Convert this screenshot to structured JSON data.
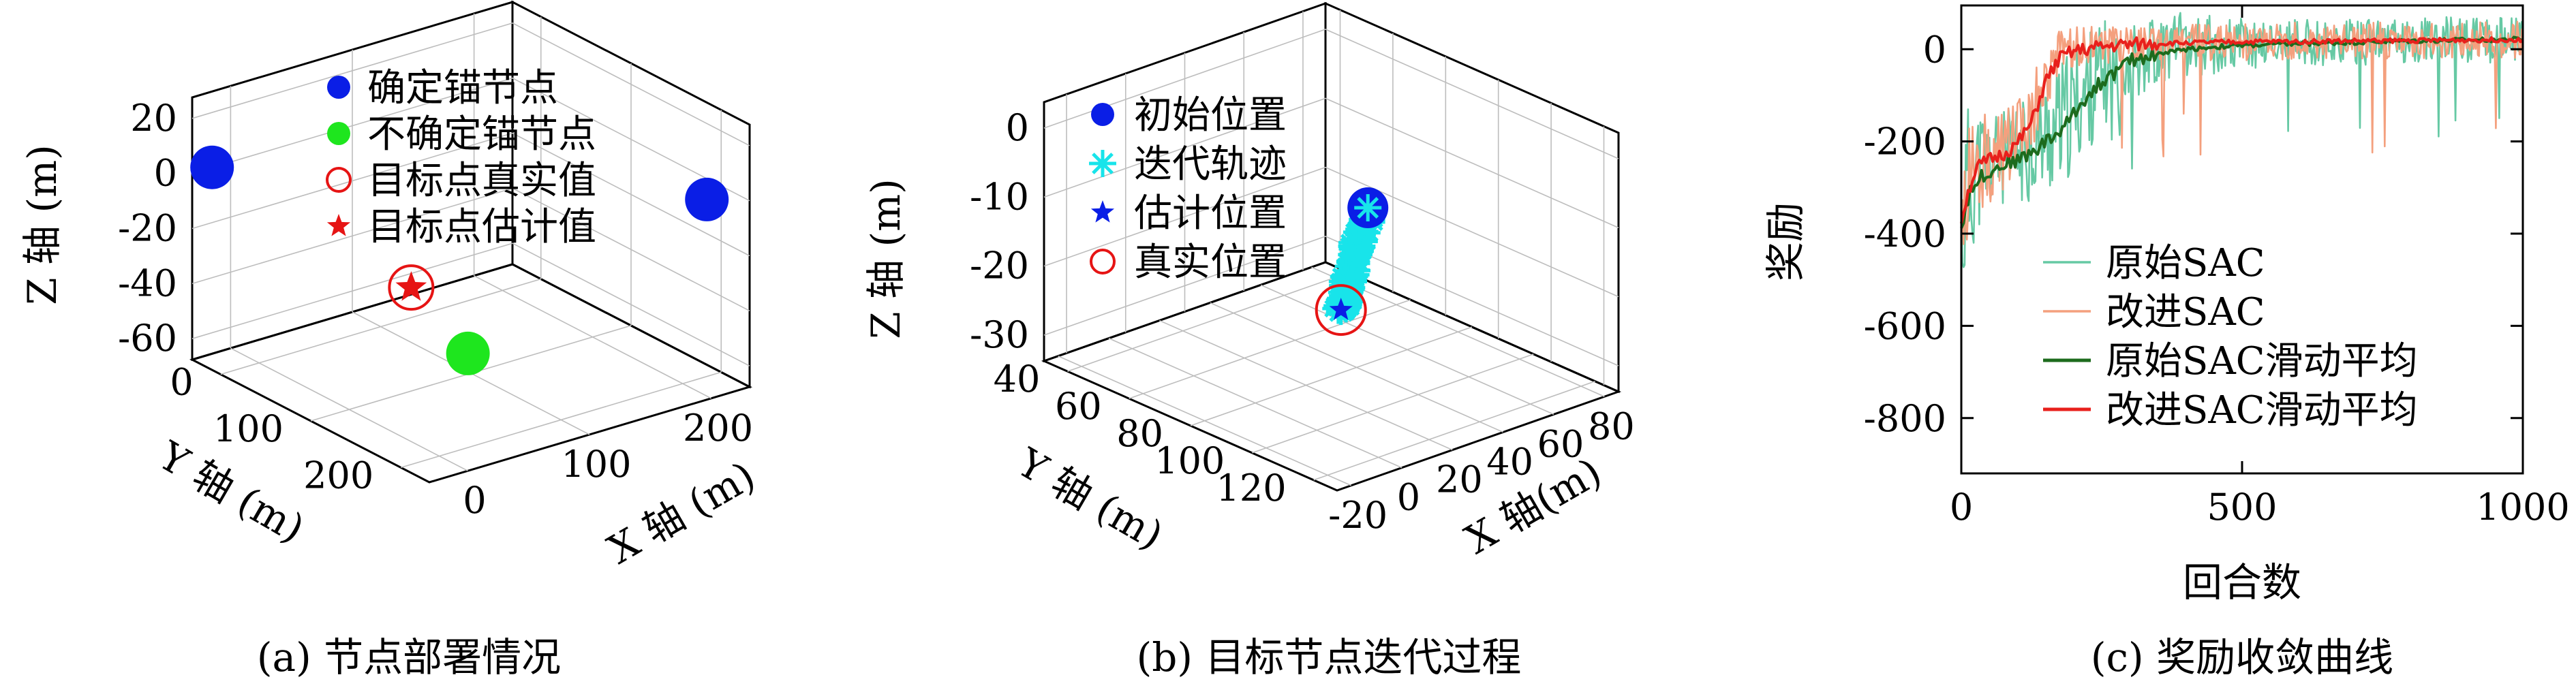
{
  "chart_data": [
    {
      "type": "scatter",
      "caption": "(a) 节点部署情况",
      "xlabel": "X 轴 (m)",
      "ylabel": "Y 轴 (m)",
      "zlabel": "Z 轴 (m)",
      "x_ticks": [
        "0",
        "100",
        "200"
      ],
      "y_ticks": [
        "0",
        "100",
        "200"
      ],
      "z_ticks": [
        "20",
        "0",
        "-20",
        "-40",
        "-60"
      ],
      "xlim": [
        -30,
        250
      ],
      "ylim": [
        -30,
        250
      ],
      "zlim": [
        -70,
        25
      ],
      "grid": true,
      "legend_position": "top",
      "series": [
        {
          "name": "确定锚节点",
          "marker": "filled-circle",
          "color": "#0a1ee6",
          "points": [
            {
              "x": -20,
              "y": 240,
              "z": 0
            },
            {
              "x": 240,
              "y": 0,
              "z": 0
            }
          ]
        },
        {
          "name": "不确定锚节点",
          "marker": "filled-circle",
          "color": "#1ee61e",
          "points": [
            {
              "x": 120,
              "y": 120,
              "z": -60
            }
          ]
        },
        {
          "name": "目标点真实值",
          "marker": "open-circle",
          "color": "#e61414",
          "points": [
            {
              "x": 80,
              "y": 140,
              "z": -40
            }
          ]
        },
        {
          "name": "目标点估计值",
          "marker": "star",
          "color": "#e61414",
          "points": [
            {
              "x": 80,
              "y": 140,
              "z": -40
            }
          ]
        }
      ]
    },
    {
      "type": "scatter",
      "caption": "(b) 目标节点迭代过程",
      "xlabel": "X 轴(m)",
      "ylabel": "Y 轴 (m)",
      "zlabel": "Z 轴 (m)",
      "x_ticks": [
        "-20",
        "0",
        "20",
        "40",
        "60",
        "80"
      ],
      "y_ticks": [
        "40",
        "60",
        "80",
        "100",
        "120"
      ],
      "z_ticks": [
        "0",
        "-10",
        "-20",
        "-30"
      ],
      "xlim": [
        -25,
        90
      ],
      "ylim": [
        30,
        130
      ],
      "zlim": [
        -32,
        4
      ],
      "grid": true,
      "legend_position": "top-left",
      "series": [
        {
          "name": "初始位置",
          "marker": "filled-circle",
          "color": "#0a1ee6",
          "points": [
            {
              "x": 80,
              "y": 110,
              "z": 3
            }
          ]
        },
        {
          "name": "迭代轨迹",
          "marker": "asterisk",
          "color": "#18e4ea",
          "path": [
            {
              "x": 80,
              "y": 110,
              "z": 3
            },
            {
              "x": 76,
              "y": 107,
              "z": 0
            },
            {
              "x": 70,
              "y": 103,
              "z": -3
            },
            {
              "x": 63,
              "y": 98,
              "z": -6
            },
            {
              "x": 57,
              "y": 93,
              "z": -9
            },
            {
              "x": 51,
              "y": 88,
              "z": -12
            },
            {
              "x": 44,
              "y": 83,
              "z": -15
            },
            {
              "x": 37,
              "y": 78,
              "z": -18
            },
            {
              "x": 31,
              "y": 73,
              "z": -21
            },
            {
              "x": 25,
              "y": 68,
              "z": -24
            },
            {
              "x": 18,
              "y": 63,
              "z": -27
            },
            {
              "x": 12,
              "y": 58,
              "z": -29
            }
          ]
        },
        {
          "name": "估计位置",
          "marker": "star",
          "color": "#0a1ee6",
          "points": [
            {
              "x": 12,
              "y": 58,
              "z": -29
            }
          ]
        },
        {
          "name": "真实位置",
          "marker": "open-circle",
          "color": "#e61414",
          "points": [
            {
              "x": 12,
              "y": 58,
              "z": -29
            }
          ]
        }
      ]
    },
    {
      "type": "line",
      "caption": "(c) 奖励收敛曲线",
      "xlabel": "回合数",
      "ylabel": "奖励",
      "xlim": [
        0,
        1000
      ],
      "ylim": [
        -920,
        95
      ],
      "x_ticks": [
        0,
        500,
        1000
      ],
      "y_ticks": [
        0,
        -200,
        -400,
        -600,
        -800
      ],
      "grid": false,
      "legend_position": "bottom-center",
      "series": [
        {
          "name": "原始SAC",
          "color": "#66c9a4",
          "x": [
            0,
            10,
            20,
            30,
            50,
            75,
            100,
            125,
            150,
            175,
            200,
            225,
            250,
            275,
            300,
            350,
            400,
            500,
            600,
            700,
            800,
            900,
            1000
          ],
          "values": [
            -400,
            -310,
            -280,
            -260,
            -250,
            -240,
            -230,
            -210,
            -190,
            -170,
            -130,
            -90,
            -60,
            -40,
            -20,
            0,
            10,
            10,
            15,
            15,
            20,
            20,
            20
          ],
          "band": [
            200,
            200,
            160,
            140,
            120,
            110,
            110,
            120,
            130,
            140,
            140,
            130,
            120,
            110,
            90,
            80,
            70,
            60,
            50,
            50,
            50,
            50,
            50
          ]
        },
        {
          "name": "改进SAC",
          "color": "#f4a07e",
          "x": [
            0,
            10,
            20,
            30,
            50,
            75,
            100,
            125,
            150,
            175,
            200,
            225,
            250,
            275,
            300,
            350,
            400,
            500,
            600,
            700,
            800,
            900,
            1000
          ],
          "values": [
            -380,
            -300,
            -260,
            -240,
            -235,
            -225,
            -200,
            -150,
            -60,
            -10,
            5,
            10,
            10,
            10,
            12,
            15,
            15,
            15,
            18,
            18,
            20,
            20,
            20
          ],
          "band": [
            160,
            150,
            130,
            110,
            100,
            90,
            90,
            90,
            70,
            50,
            45,
            40,
            40,
            40,
            40,
            40,
            40,
            40,
            40,
            40,
            40,
            40,
            40
          ]
        },
        {
          "name": "原始SAC滑动平均",
          "color": "#1d6b1d",
          "x": [
            0,
            10,
            20,
            30,
            50,
            75,
            100,
            125,
            150,
            175,
            200,
            225,
            250,
            275,
            300,
            350,
            400,
            450,
            500,
            600,
            700,
            800,
            900,
            1000
          ],
          "values": [
            -390,
            -330,
            -300,
            -280,
            -265,
            -250,
            -240,
            -225,
            -200,
            -180,
            -140,
            -100,
            -70,
            -50,
            -25,
            -10,
            0,
            5,
            8,
            12,
            15,
            18,
            20,
            22
          ]
        },
        {
          "name": "改进SAC滑动平均",
          "color": "#e8201c",
          "x": [
            0,
            10,
            20,
            30,
            50,
            75,
            100,
            125,
            150,
            175,
            200,
            225,
            250,
            275,
            300,
            350,
            400,
            450,
            500,
            600,
            700,
            800,
            900,
            1000
          ],
          "values": [
            -370,
            -320,
            -280,
            -255,
            -240,
            -228,
            -205,
            -160,
            -70,
            -20,
            -5,
            0,
            5,
            8,
            10,
            12,
            14,
            15,
            16,
            17,
            18,
            19,
            20,
            21
          ]
        }
      ]
    }
  ]
}
